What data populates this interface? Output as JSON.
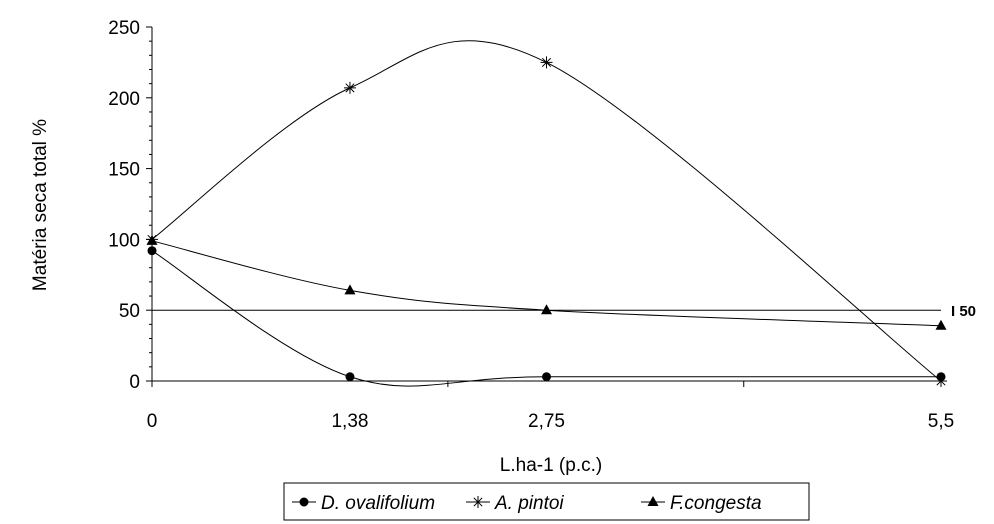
{
  "chart_data": {
    "type": "line",
    "xlabel": "L.ha-1 (p.c.)",
    "ylabel": "Matéria seca total %",
    "x": [
      0,
      1.38,
      2.75,
      5.5
    ],
    "x_tick_labels": [
      "0",
      "1,38",
      "2,75",
      "5,5"
    ],
    "ylim": [
      0,
      250
    ],
    "y_ticks": [
      0,
      50,
      100,
      150,
      200,
      250
    ],
    "y_tick_labels": [
      "0",
      "50",
      "100",
      "150",
      "200",
      "250"
    ],
    "grid": false,
    "legend_position": "bottom",
    "series": [
      {
        "name": "D. ovalifolium",
        "marker": "circle",
        "values": [
          92,
          3,
          3,
          3
        ]
      },
      {
        "name": "A. pintoi",
        "marker": "star",
        "values": [
          100,
          207,
          225,
          0
        ]
      },
      {
        "name": "F.congesta",
        "marker": "triangle",
        "values": [
          99,
          64,
          50,
          39
        ]
      }
    ],
    "reference_line": {
      "y": 50,
      "label": "I 50"
    }
  }
}
